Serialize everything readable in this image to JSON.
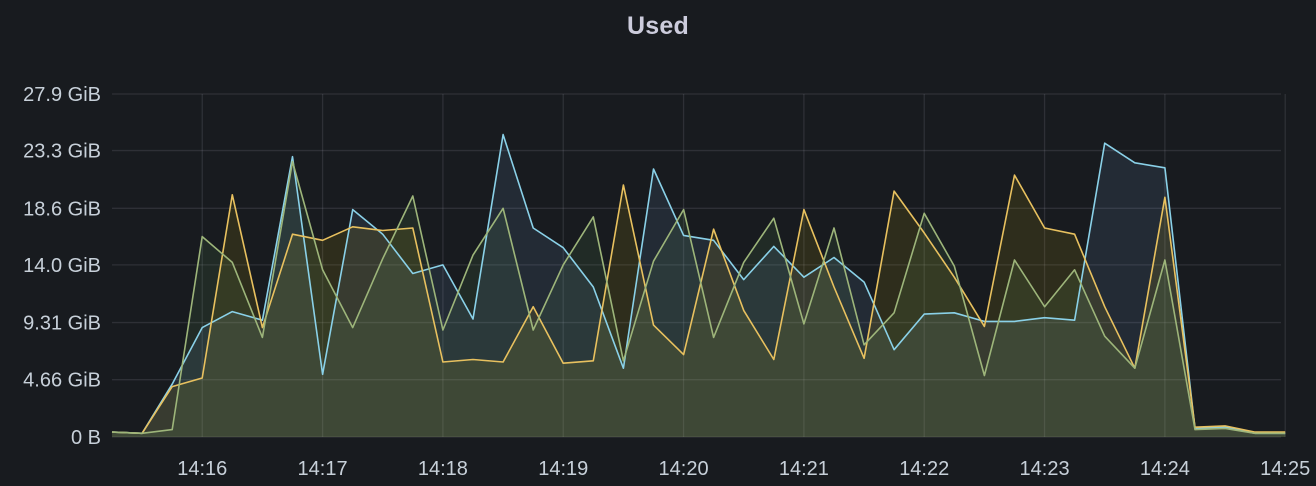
{
  "panel": {
    "title": "Used"
  },
  "chart_data": {
    "type": "area",
    "title": "Used",
    "xlabel": "",
    "ylabel": "",
    "y_unit": "GiB",
    "ylim": [
      0,
      27.9
    ],
    "y_ticks": [
      0,
      4.66,
      9.31,
      14.0,
      18.6,
      23.3,
      27.9
    ],
    "y_tick_labels": [
      "0 B",
      "4.66 GiB",
      "9.31 GiB",
      "14.0 GiB",
      "18.6 GiB",
      "23.3 GiB",
      "27.9 GiB"
    ],
    "x_ticks": [
      "14:16",
      "14:17",
      "14:18",
      "14:19",
      "14:20",
      "14:21",
      "14:22",
      "14:23",
      "14:24",
      "14:25"
    ],
    "grid": true,
    "legend": "none",
    "x": [
      "14:15:15",
      "14:15:30",
      "14:15:45",
      "14:16:00",
      "14:16:15",
      "14:16:30",
      "14:16:45",
      "14:17:00",
      "14:17:15",
      "14:17:30",
      "14:17:45",
      "14:18:00",
      "14:18:15",
      "14:18:30",
      "14:18:45",
      "14:19:00",
      "14:19:15",
      "14:19:30",
      "14:19:45",
      "14:20:00",
      "14:20:15",
      "14:20:30",
      "14:20:45",
      "14:21:00",
      "14:21:15",
      "14:21:30",
      "14:21:45",
      "14:22:00",
      "14:22:15",
      "14:22:30",
      "14:22:45",
      "14:23:00",
      "14:23:15",
      "14:23:30",
      "14:23:45",
      "14:24:00",
      "14:24:15",
      "14:24:30",
      "14:24:45",
      "14:25:00"
    ],
    "series": [
      {
        "color": "#8ab8ff",
        "line_color": "#8ad1e8",
        "values": [
          0.4,
          0.3,
          4.3,
          8.9,
          10.2,
          9.5,
          22.8,
          5.1,
          18.5,
          16.5,
          13.3,
          14.0,
          9.6,
          24.6,
          17.0,
          15.4,
          12.2,
          5.6,
          21.8,
          16.4,
          16.0,
          12.8,
          15.5,
          13.0,
          14.6,
          12.6,
          7.1,
          10.0,
          10.1,
          9.4,
          9.4,
          9.7,
          9.5,
          23.9,
          22.3,
          21.9,
          0.7,
          0.8,
          0.3,
          0.3
        ]
      },
      {
        "color": "#f2cc0c",
        "line_color": "#e8c15f",
        "values": [
          0.4,
          0.3,
          4.1,
          4.8,
          19.7,
          8.9,
          16.5,
          16.0,
          17.1,
          16.8,
          17.0,
          6.1,
          6.3,
          6.1,
          10.6,
          6.0,
          6.2,
          20.5,
          9.1,
          6.7,
          16.9,
          10.3,
          6.3,
          18.5,
          12.2,
          6.4,
          20.0,
          16.6,
          13.0,
          9.0,
          21.3,
          17.0,
          16.5,
          10.6,
          5.6,
          19.5,
          0.8,
          0.9,
          0.4,
          0.4
        ]
      },
      {
        "color": "#73bf69",
        "line_color": "#9db57a",
        "values": [
          0.4,
          0.3,
          0.6,
          16.3,
          14.2,
          8.1,
          22.4,
          13.6,
          8.9,
          14.5,
          19.6,
          8.7,
          14.8,
          18.6,
          8.7,
          14.0,
          17.9,
          6.2,
          14.3,
          18.5,
          8.1,
          14.2,
          17.8,
          9.2,
          17.0,
          7.5,
          10.1,
          18.2,
          13.9,
          5.0,
          14.4,
          10.6,
          13.6,
          8.2,
          5.6,
          14.4,
          0.6,
          0.7,
          0.3,
          0.3
        ]
      }
    ]
  }
}
